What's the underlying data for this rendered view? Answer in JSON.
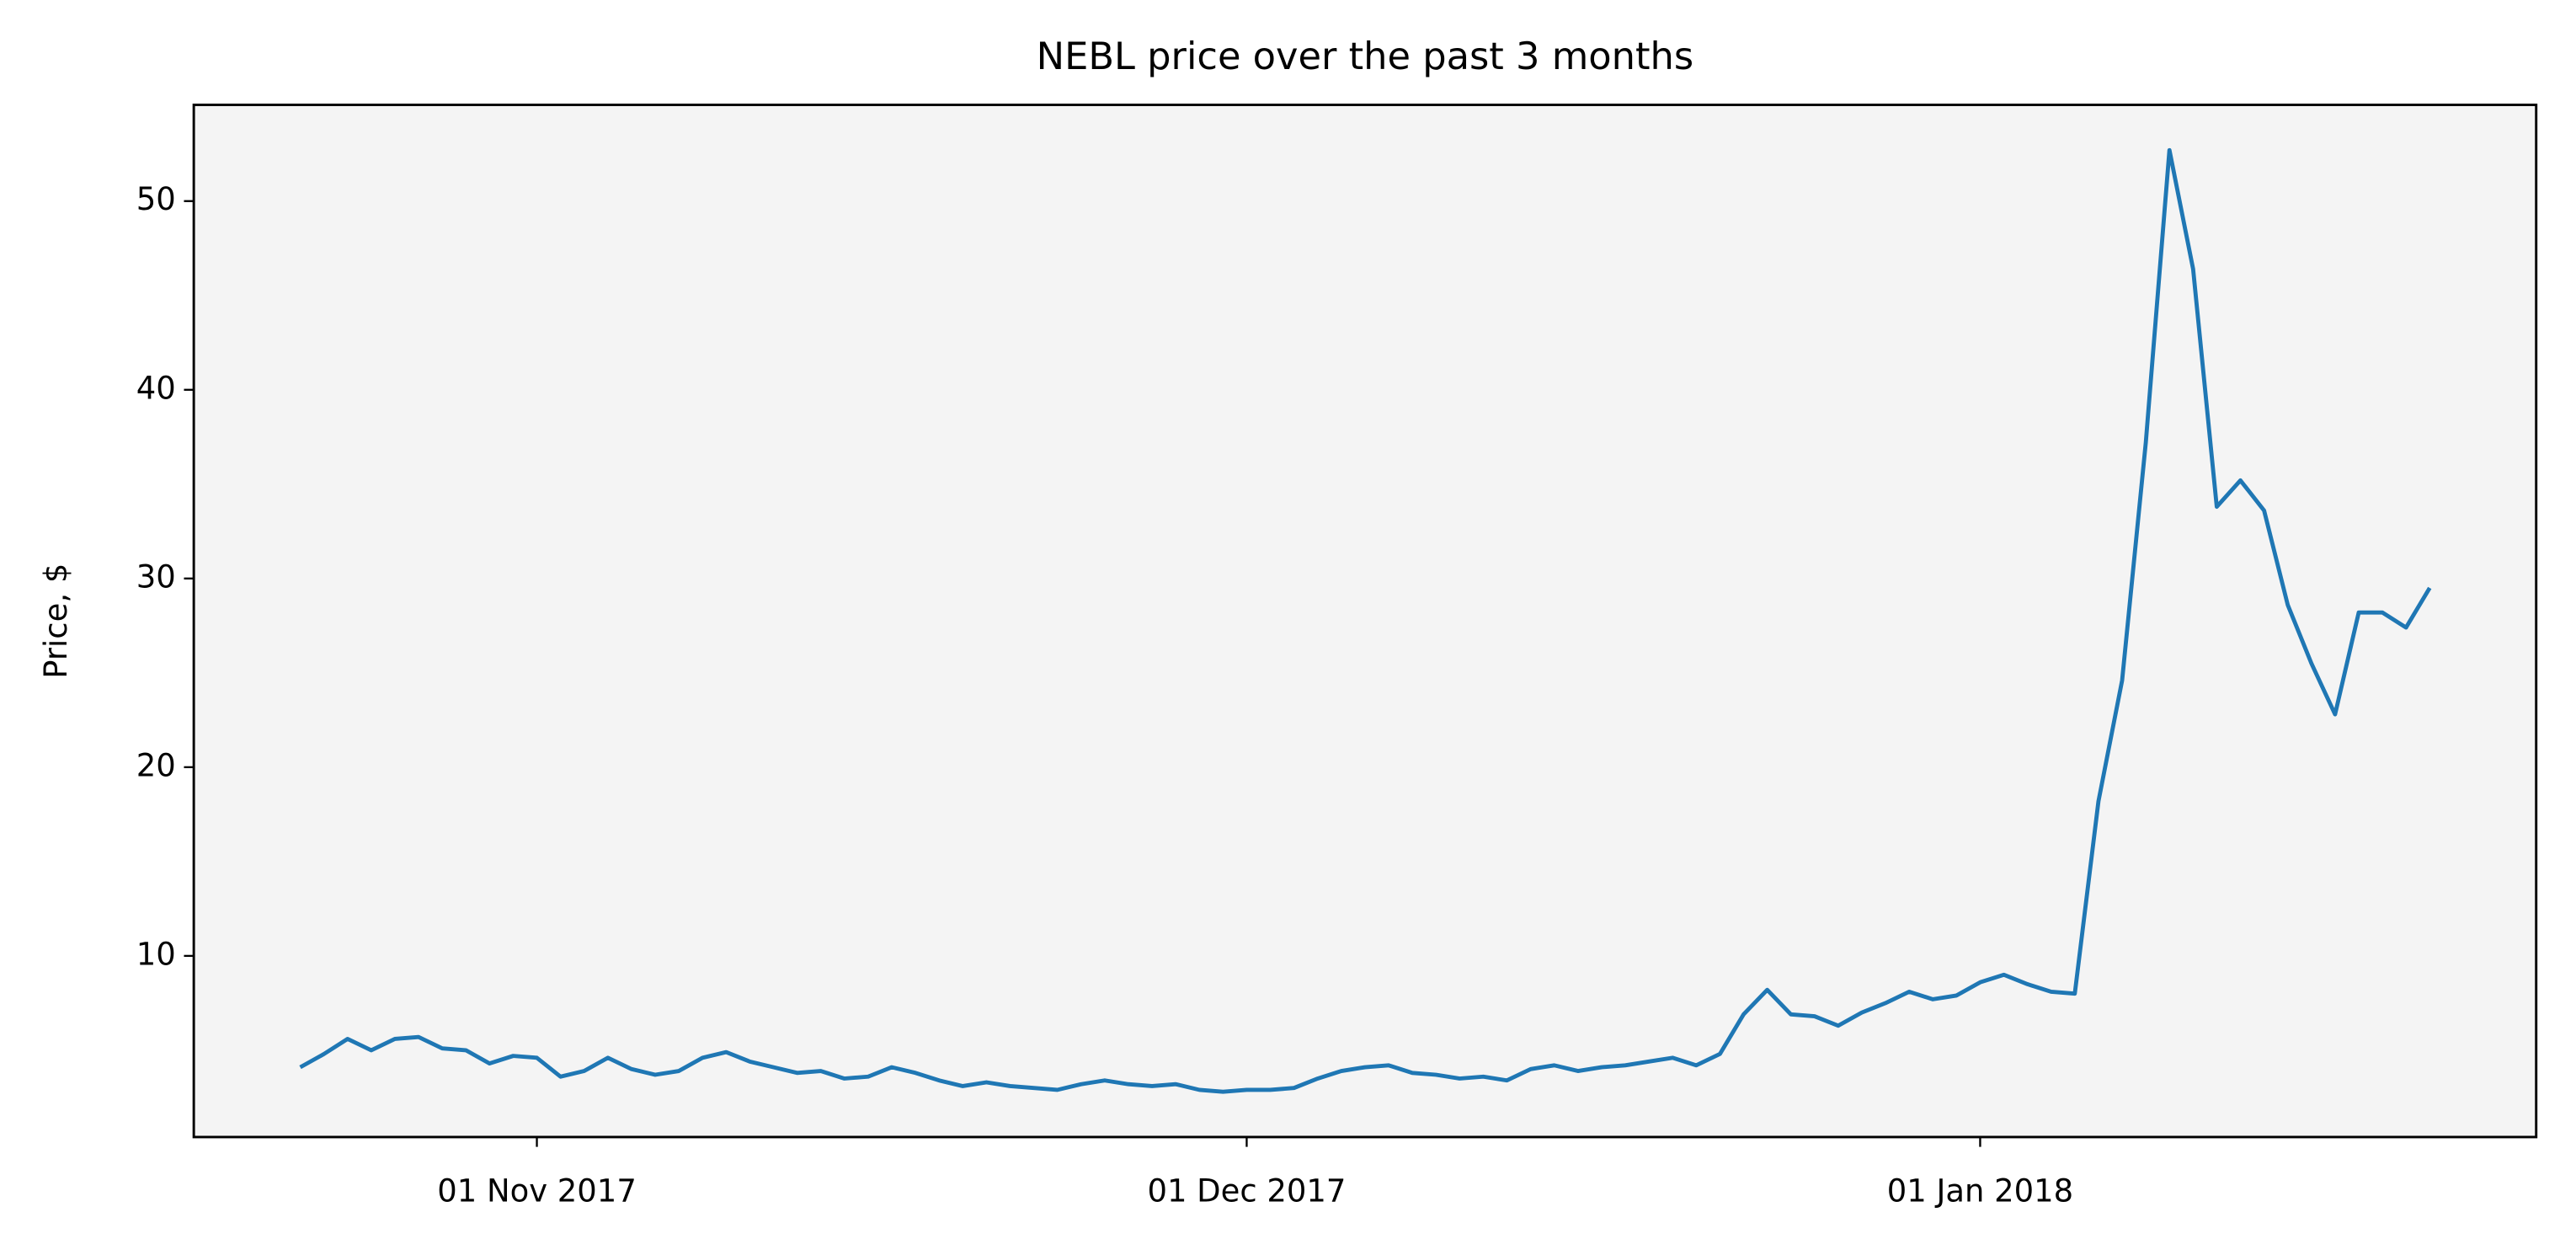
{
  "chart_data": {
    "type": "line",
    "title": "NEBL price over the past 3 months",
    "y_label": "Price, $",
    "color": "#1f77b4",
    "background": "#f4f4f4",
    "x": [
      "2017-10-22",
      "2017-10-23",
      "2017-10-24",
      "2017-10-25",
      "2017-10-26",
      "2017-10-27",
      "2017-10-28",
      "2017-10-29",
      "2017-10-30",
      "2017-10-31",
      "2017-11-01",
      "2017-11-02",
      "2017-11-03",
      "2017-11-04",
      "2017-11-05",
      "2017-11-06",
      "2017-11-07",
      "2017-11-08",
      "2017-11-09",
      "2017-11-10",
      "2017-11-11",
      "2017-11-12",
      "2017-11-13",
      "2017-11-14",
      "2017-11-15",
      "2017-11-16",
      "2017-11-17",
      "2017-11-18",
      "2017-11-19",
      "2017-11-20",
      "2017-11-21",
      "2017-11-22",
      "2017-11-23",
      "2017-11-24",
      "2017-11-25",
      "2017-11-26",
      "2017-11-27",
      "2017-11-28",
      "2017-11-29",
      "2017-11-30",
      "2017-12-01",
      "2017-12-02",
      "2017-12-03",
      "2017-12-04",
      "2017-12-05",
      "2017-12-06",
      "2017-12-07",
      "2017-12-08",
      "2017-12-09",
      "2017-12-10",
      "2017-12-11",
      "2017-12-12",
      "2017-12-13",
      "2017-12-14",
      "2017-12-15",
      "2017-12-16",
      "2017-12-17",
      "2017-12-18",
      "2017-12-19",
      "2017-12-20",
      "2017-12-21",
      "2017-12-22",
      "2017-12-23",
      "2017-12-24",
      "2017-12-25",
      "2017-12-26",
      "2017-12-27",
      "2017-12-28",
      "2017-12-29",
      "2017-12-30",
      "2017-12-31",
      "2018-01-01",
      "2018-01-02",
      "2018-01-03",
      "2018-01-04",
      "2018-01-05",
      "2018-01-06",
      "2018-01-07",
      "2018-01-08",
      "2018-01-09",
      "2018-01-10",
      "2018-01-11",
      "2018-01-12",
      "2018-01-13",
      "2018-01-14",
      "2018-01-15",
      "2018-01-16",
      "2018-01-17",
      "2018-01-18",
      "2018-01-19",
      "2018-01-20"
    ],
    "values": [
      4.1,
      4.8,
      5.6,
      5.0,
      5.6,
      5.7,
      5.1,
      5.0,
      4.3,
      4.7,
      4.6,
      3.6,
      3.9,
      4.6,
      4.0,
      3.7,
      3.9,
      4.6,
      4.9,
      4.4,
      4.1,
      3.8,
      3.9,
      3.5,
      3.6,
      4.1,
      3.8,
      3.4,
      3.1,
      3.3,
      3.1,
      3.0,
      2.9,
      3.2,
      3.4,
      3.2,
      3.1,
      3.2,
      2.9,
      2.8,
      2.9,
      2.9,
      3.0,
      3.5,
      3.9,
      4.1,
      4.2,
      3.8,
      3.7,
      3.5,
      3.6,
      3.4,
      4.0,
      4.2,
      3.9,
      4.1,
      4.2,
      4.4,
      4.6,
      4.2,
      4.8,
      6.9,
      8.2,
      6.9,
      6.8,
      6.3,
      7.0,
      7.5,
      8.1,
      7.7,
      7.9,
      8.6,
      9.0,
      8.5,
      8.1,
      8.0,
      18.2,
      24.6,
      37.2,
      52.7,
      46.4,
      33.8,
      35.2,
      33.6,
      28.6,
      25.5,
      22.8,
      28.2,
      28.2,
      27.4,
      29.5
    ],
    "xlim": [
      "2017-10-17T12:00",
      "2018-01-24T12:00"
    ],
    "xticks": [
      {
        "value": "2017-11-01",
        "label": "01 Nov 2017"
      },
      {
        "value": "2017-12-01",
        "label": "01 Dec 2017"
      },
      {
        "value": "2018-01-01",
        "label": "01 Jan 2018"
      }
    ],
    "ylim": [
      0.4,
      55.1
    ],
    "yticks": [
      10,
      20,
      30,
      40,
      50
    ]
  }
}
